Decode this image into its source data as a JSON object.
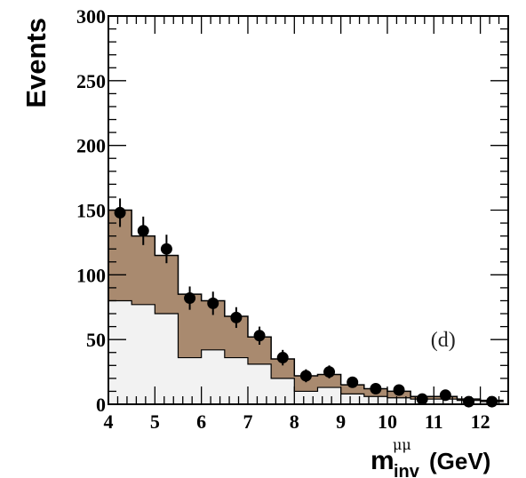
{
  "chart_data": {
    "type": "bar",
    "xlabel": {
      "main": "m",
      "sup": "μμ",
      "sub": "inv",
      "unit": "(GeV)"
    },
    "ylabel": "Events",
    "xlim": [
      4,
      12.6
    ],
    "ylim": [
      0,
      300
    ],
    "xticks": [
      "4",
      "5",
      "6",
      "7",
      "8",
      "9",
      "10",
      "11",
      "12"
    ],
    "yticks": [
      "0",
      "50",
      "100",
      "150",
      "200",
      "250",
      "300"
    ],
    "annotation": "(d)",
    "bin_edges": [
      4.0,
      4.5,
      5.0,
      5.5,
      6.0,
      6.5,
      7.0,
      7.5,
      8.0,
      8.5,
      9.0,
      9.5,
      10.0,
      10.5,
      11.0,
      11.5,
      12.0,
      12.5
    ],
    "colors": {
      "total": "#a98a6f",
      "background": "#f2f2f2",
      "line": "#000000"
    },
    "series": [
      {
        "kind": "step-fill",
        "values": [
          150,
          130,
          115,
          85,
          80,
          68,
          52,
          35,
          22,
          23,
          15,
          12,
          10,
          6,
          6,
          4,
          3
        ]
      },
      {
        "kind": "step-fill",
        "values": [
          80,
          77,
          70,
          36,
          42,
          36,
          31,
          20,
          10,
          13,
          8,
          6,
          5,
          4,
          4,
          3,
          2
        ]
      },
      {
        "kind": "points",
        "x": [
          4.25,
          4.75,
          5.25,
          5.75,
          6.25,
          6.75,
          7.25,
          7.75,
          8.25,
          8.75,
          9.25,
          9.75,
          10.25,
          10.75,
          11.25,
          11.75,
          12.25
        ],
        "y": [
          148,
          134,
          120,
          82,
          78,
          67,
          53,
          36,
          22,
          25,
          17,
          12,
          11,
          4,
          7,
          2,
          2
        ],
        "err": [
          11,
          11,
          11,
          9,
          9,
          8,
          7,
          6,
          5,
          5,
          4,
          3.5,
          3.5,
          2,
          2.5,
          1.5,
          1.5
        ]
      }
    ]
  }
}
